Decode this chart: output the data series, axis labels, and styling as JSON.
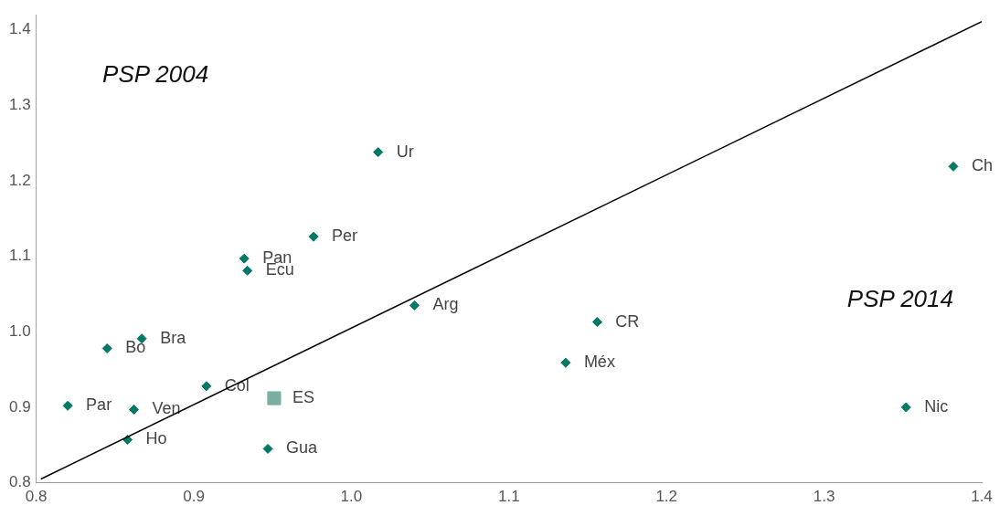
{
  "chart_data": {
    "type": "scatter",
    "xlim": [
      0.8,
      1.4
    ],
    "ylim": [
      0.8,
      1.42
    ],
    "xticks": [
      0.8,
      0.9,
      {
        "value": 1,
        "label": "1.0"
      },
      1.1,
      1.2,
      1.3,
      1.4
    ],
    "yticks": [
      0.8,
      0.9,
      {
        "value": 1,
        "label": "1.0"
      },
      1.1,
      1.2,
      1.3,
      1.4
    ],
    "grid": false,
    "legend": false,
    "marker": "diamond",
    "annotations": [
      "PSP 2004",
      "PSP 2014"
    ],
    "series": [
      {
        "type": "line",
        "marker": "none",
        "color": "#000000",
        "x": [
          0.803,
          1.4
        ],
        "values": [
          0.805,
          1.411
        ]
      },
      {
        "name": "Ur",
        "color": "#007a64",
        "x": [
          1.017
        ],
        "values": [
          1.238
        ]
      },
      {
        "name": "Ch",
        "color": "#007a64",
        "x": [
          1.382
        ],
        "values": [
          1.219
        ]
      },
      {
        "name": "Per",
        "color": "#007a64",
        "x": [
          0.976
        ],
        "values": [
          1.126
        ]
      },
      {
        "name": "Pan",
        "color": "#007a64",
        "x": [
          0.932
        ],
        "values": [
          1.097
        ]
      },
      {
        "name": "Ecu",
        "color": "#007a64",
        "x": [
          0.934
        ],
        "values": [
          1.081
        ]
      },
      {
        "name": "Arg",
        "color": "#007a64",
        "x": [
          1.04
        ],
        "values": [
          1.035
        ]
      },
      {
        "name": "CR",
        "color": "#007a64",
        "x": [
          1.156
        ],
        "values": [
          1.013
        ]
      },
      {
        "name": "Méx",
        "color": "#007a64",
        "x": [
          1.136
        ],
        "values": [
          0.959
        ]
      },
      {
        "name": "Bra",
        "color": "#007a64",
        "x": [
          0.867
        ],
        "values": [
          0.991
        ]
      },
      {
        "name": "Bo",
        "color": "#007a64",
        "x": [
          0.845
        ],
        "values": [
          0.978
        ]
      },
      {
        "name": "Col",
        "color": "#007a64",
        "x": [
          0.908
        ],
        "values": [
          0.928
        ]
      },
      {
        "name": "ES",
        "color": "#7aaea3",
        "marker": "square",
        "x": [
          0.951
        ],
        "values": [
          0.912
        ]
      },
      {
        "name": "Par",
        "color": "#007a64",
        "x": [
          0.82
        ],
        "values": [
          0.902
        ]
      },
      {
        "name": "Ven",
        "color": "#007a64",
        "x": [
          0.862
        ],
        "values": [
          0.897
        ]
      },
      {
        "name": "Nic",
        "color": "#007a64",
        "x": [
          1.352
        ],
        "values": [
          0.9
        ]
      },
      {
        "name": "Ho",
        "color": "#007a64",
        "x": [
          0.858
        ],
        "values": [
          0.857
        ]
      },
      {
        "name": "Gua",
        "color": "#007a64",
        "x": [
          0.947
        ],
        "values": [
          0.845
        ]
      }
    ]
  }
}
